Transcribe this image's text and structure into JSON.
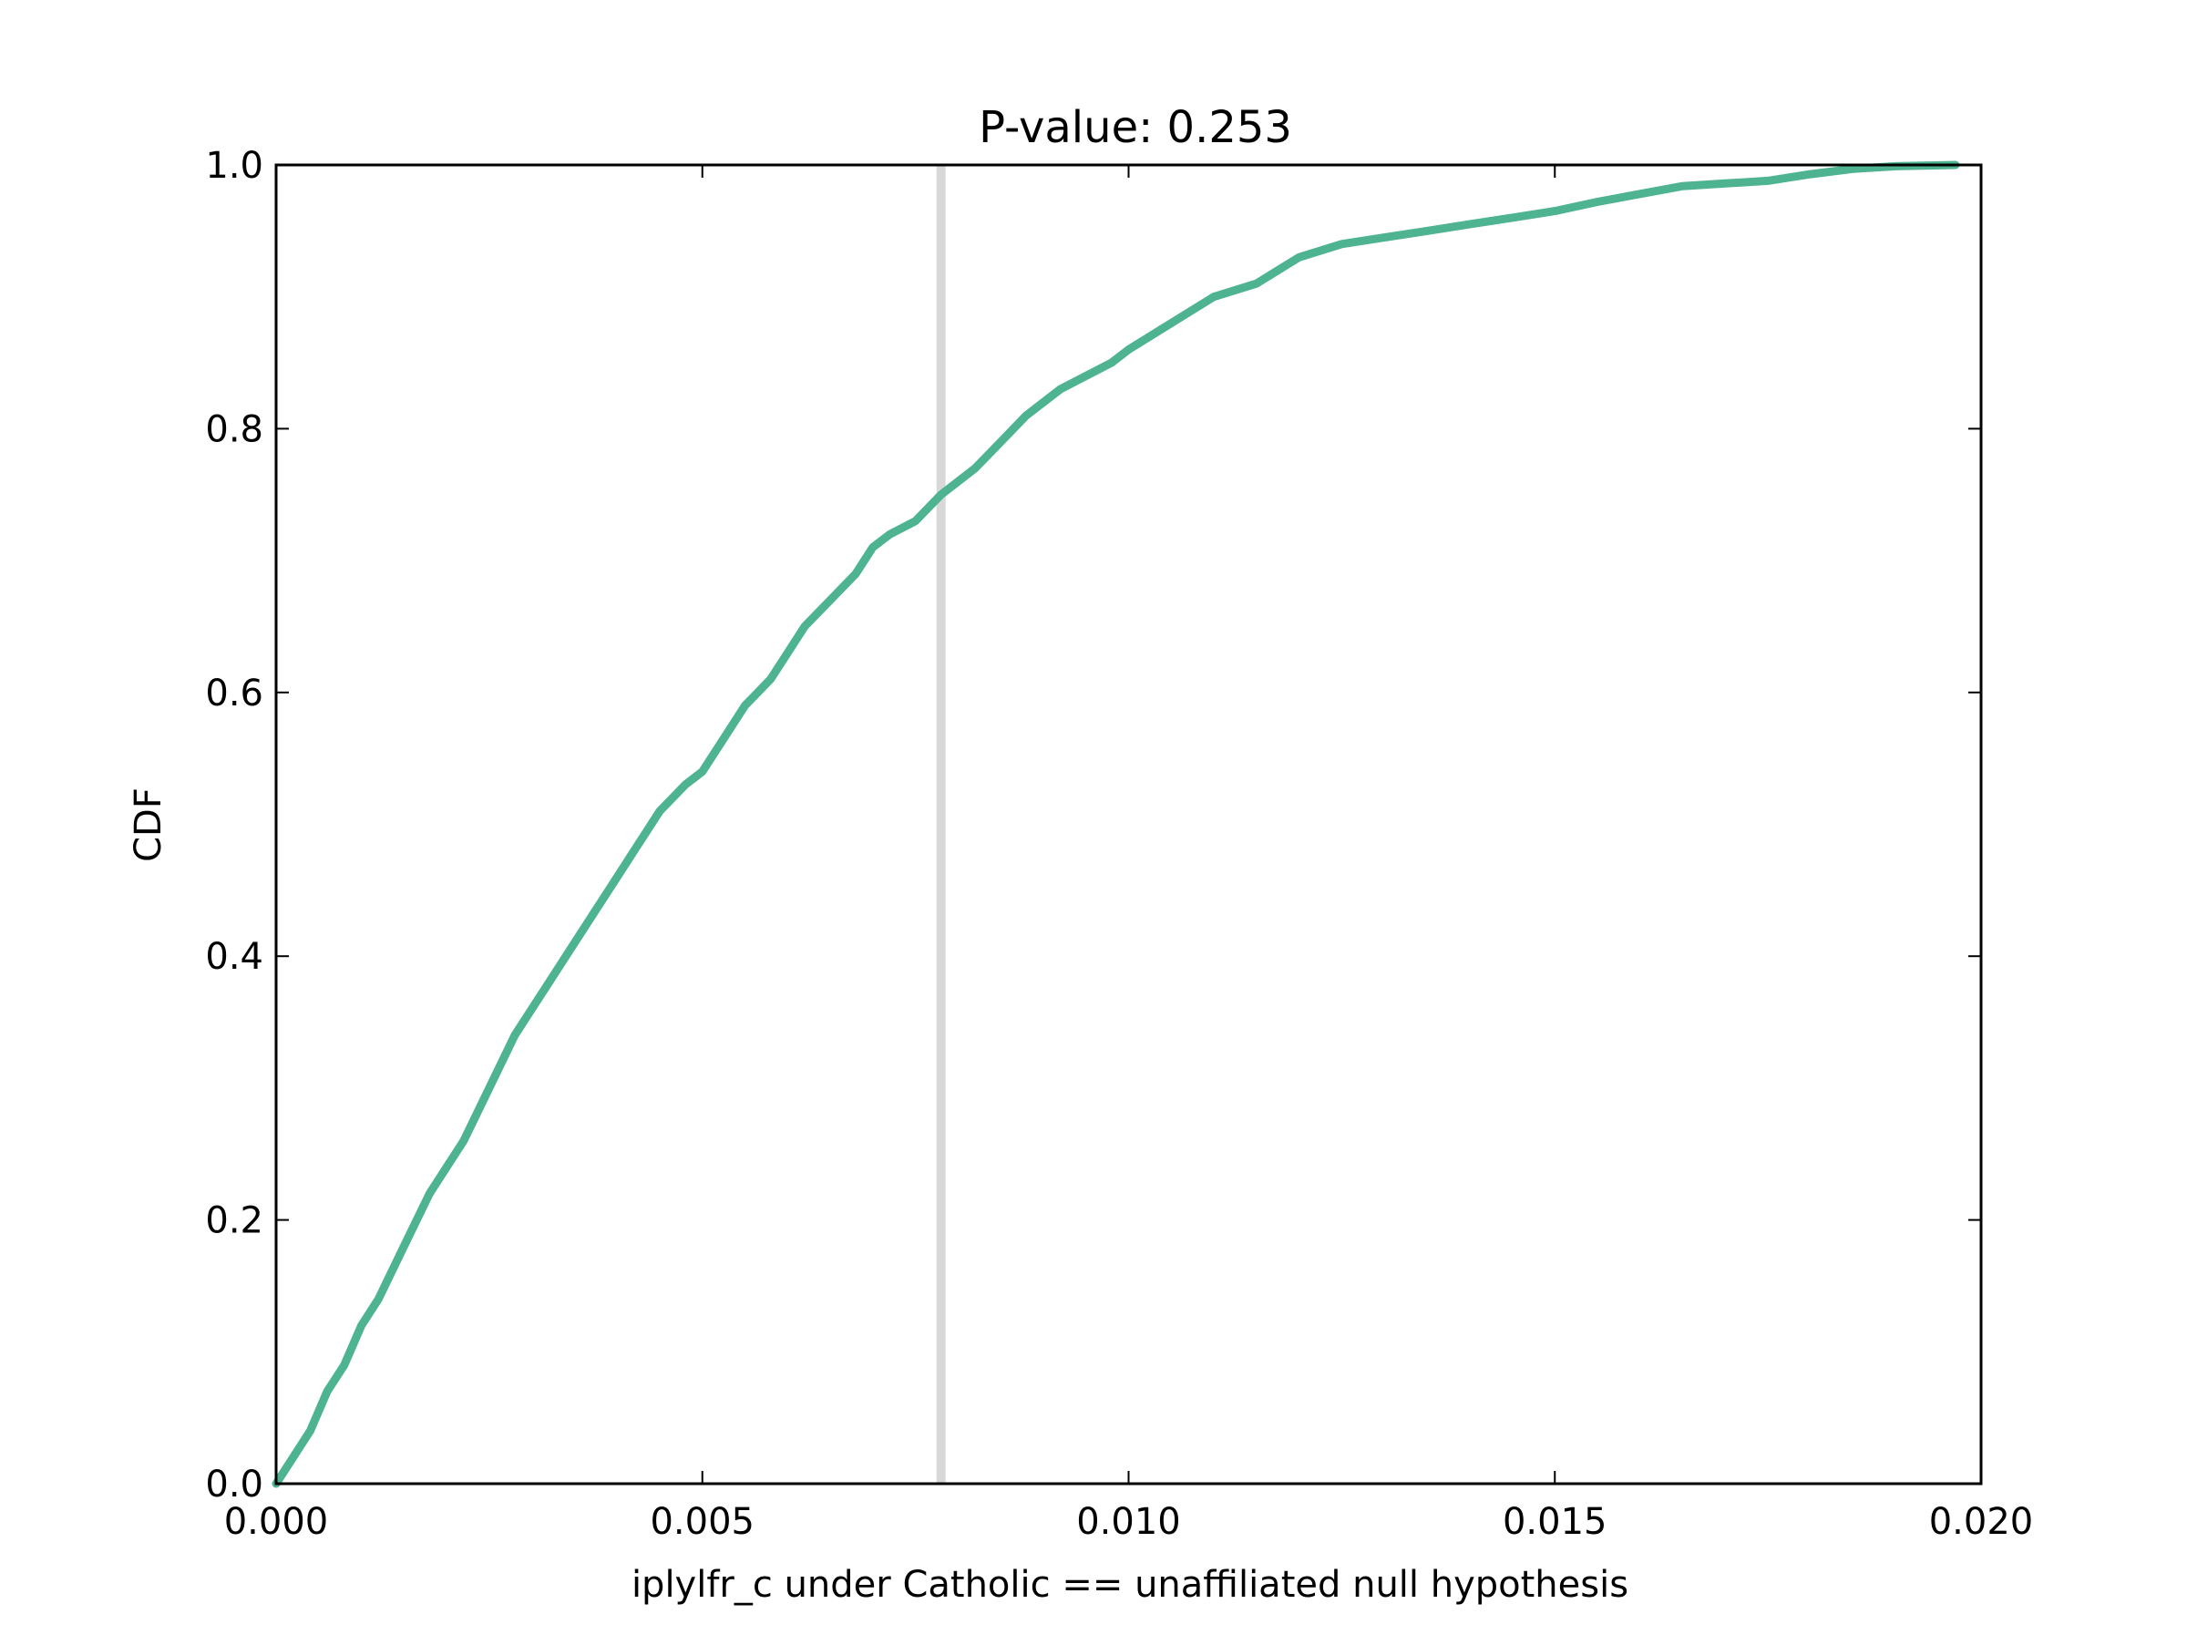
{
  "chart_data": {
    "type": "line",
    "title": "P-value: 0.253",
    "xlabel": "iplylfr_c under Catholic == unaffiliated null hypothesis",
    "ylabel": "CDF",
    "xlim": [
      0.0,
      0.02
    ],
    "ylim": [
      0.0,
      1.0
    ],
    "xticks": [
      0.0,
      0.005,
      0.01,
      0.015,
      0.02
    ],
    "xtick_labels": [
      "0.000",
      "0.005",
      "0.010",
      "0.015",
      "0.020"
    ],
    "yticks": [
      0.0,
      0.2,
      0.4,
      0.6,
      0.8,
      1.0
    ],
    "ytick_labels": [
      "0.0",
      "0.2",
      "0.4",
      "0.6",
      "0.8",
      "1.0"
    ],
    "grid": false,
    "legend": "none",
    "vline": {
      "x": 0.0078,
      "color": "#d8d8d8"
    },
    "series": [
      {
        "color": "#4db391",
        "x": [
          0.0,
          0.0002,
          0.0004,
          0.0006,
          0.0008,
          0.001,
          0.0012,
          0.0015,
          0.0018,
          0.002,
          0.0022,
          0.0025,
          0.0028,
          0.003,
          0.0032,
          0.0035,
          0.0038,
          0.004,
          0.0042,
          0.0045,
          0.0048,
          0.005,
          0.0052,
          0.0055,
          0.0058,
          0.006,
          0.0062,
          0.0065,
          0.0068,
          0.007,
          0.0072,
          0.0075,
          0.0078,
          0.008,
          0.0082,
          0.0085,
          0.0088,
          0.009,
          0.0092,
          0.0095,
          0.0098,
          0.01,
          0.0105,
          0.011,
          0.0115,
          0.012,
          0.0125,
          0.013,
          0.0135,
          0.014,
          0.0145,
          0.015,
          0.0155,
          0.016,
          0.0165,
          0.017,
          0.0175,
          0.018,
          0.0185,
          0.019,
          0.0197
        ],
        "y": [
          0.0,
          0.02,
          0.04,
          0.07,
          0.09,
          0.12,
          0.14,
          0.18,
          0.22,
          0.24,
          0.26,
          0.3,
          0.34,
          0.36,
          0.38,
          0.41,
          0.44,
          0.46,
          0.48,
          0.51,
          0.53,
          0.54,
          0.56,
          0.59,
          0.61,
          0.63,
          0.65,
          0.67,
          0.69,
          0.71,
          0.72,
          0.73,
          0.75,
          0.76,
          0.77,
          0.79,
          0.81,
          0.82,
          0.83,
          0.84,
          0.85,
          0.86,
          0.88,
          0.9,
          0.91,
          0.93,
          0.94,
          0.945,
          0.95,
          0.955,
          0.96,
          0.965,
          0.972,
          0.978,
          0.984,
          0.986,
          0.988,
          0.993,
          0.997,
          0.999,
          1.0
        ]
      }
    ]
  }
}
